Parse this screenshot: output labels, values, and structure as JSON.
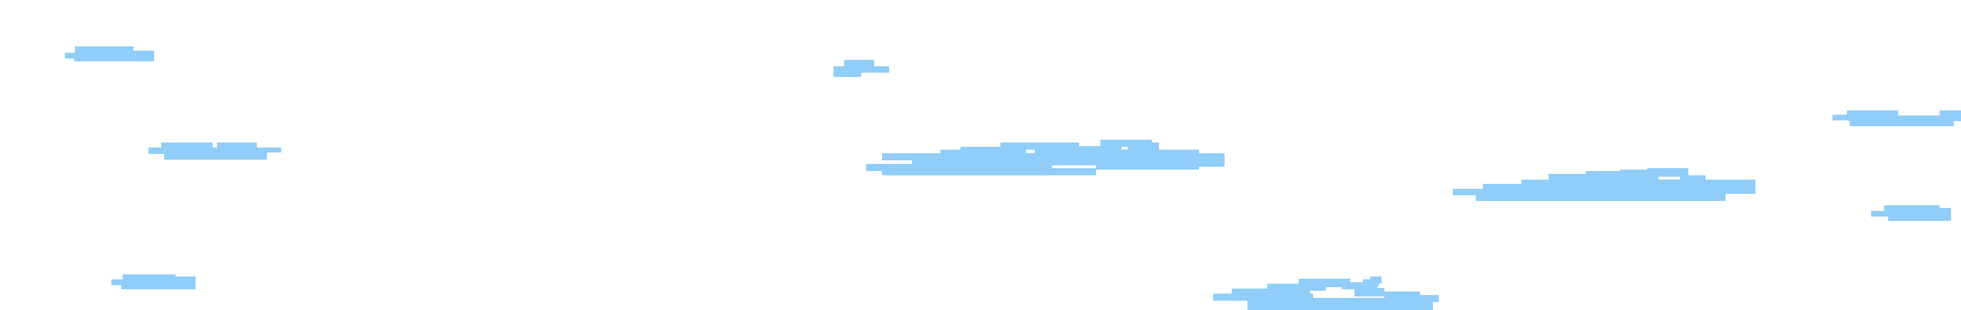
{
  "scene": {
    "background_color": "#ffffff",
    "cloud_color": "#90cdf8",
    "cloud_icon": "pixel-cloud-icon",
    "cloud_count": 9
  }
}
